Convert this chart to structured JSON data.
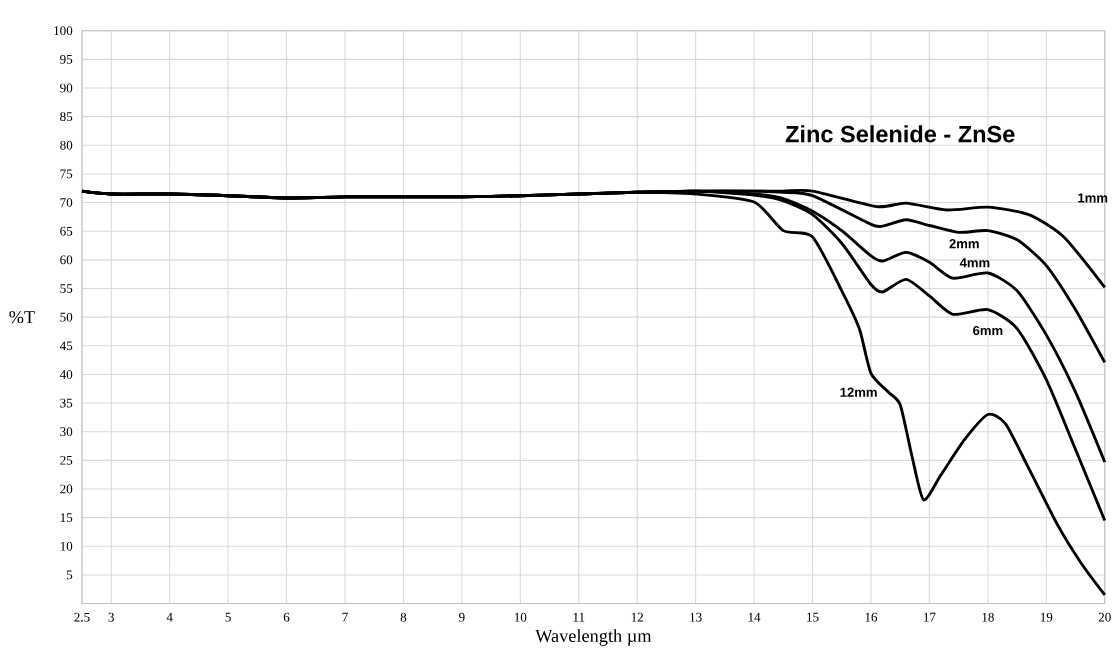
{
  "chart_data": {
    "type": "line",
    "title": "Zinc Selenide - ZnSe",
    "xlabel": "Wavelength µm",
    "ylabel": "%T",
    "xlim": [
      2.5,
      20
    ],
    "xticks": [
      2.5,
      3,
      4,
      5,
      6,
      7,
      8,
      9,
      10,
      11,
      12,
      13,
      14,
      15,
      16,
      17,
      18,
      19,
      20
    ],
    "ylim": [
      0,
      100
    ],
    "yticks": [
      5,
      10,
      15,
      20,
      25,
      30,
      35,
      40,
      45,
      50,
      55,
      60,
      65,
      70,
      75,
      80,
      85,
      90,
      95,
      100
    ],
    "grid": true,
    "marker": "none",
    "line_style": "solid",
    "series": [
      {
        "name": "1mm",
        "color": "#000000",
        "x": [
          2.5,
          3,
          4,
          5,
          6,
          7,
          8,
          9,
          10,
          11,
          12,
          13,
          14,
          14.5,
          15,
          16.1,
          16.6,
          17.3,
          18,
          18.7,
          19.3,
          20
        ],
        "values": [
          72,
          71.5,
          71.5,
          71.2,
          70.8,
          71,
          71,
          71,
          71.2,
          71.5,
          71.8,
          72,
          72,
          72,
          72,
          69.3,
          69.9,
          68.7,
          69.2,
          67.9,
          64,
          55.2
        ]
      },
      {
        "name": "2mm",
        "color": "#000000",
        "x": [
          2.5,
          3,
          4,
          5,
          6,
          7,
          8,
          9,
          10,
          11,
          12,
          13,
          14,
          14.5,
          15,
          16,
          16.2,
          16.6,
          17,
          17.5,
          18,
          18.5,
          19,
          19.5,
          20
        ],
        "values": [
          72,
          71.5,
          71.5,
          71.2,
          70.8,
          71,
          71,
          71,
          71.2,
          71.5,
          71.8,
          72,
          72,
          71.8,
          71.2,
          66.2,
          65.9,
          67,
          66,
          64.8,
          65.1,
          63.5,
          59,
          51.3,
          42.1
        ]
      },
      {
        "name": "4mm",
        "color": "#000000",
        "x": [
          2.5,
          3,
          4,
          5,
          6,
          7,
          8,
          9,
          10,
          11,
          12,
          13,
          14,
          14.5,
          15,
          15.5,
          16,
          16.2,
          16.6,
          17,
          17.4,
          18,
          18.5,
          19,
          19.5,
          20
        ],
        "values": [
          72,
          71.5,
          71.5,
          71.2,
          70.8,
          71,
          71,
          71,
          71.2,
          71.5,
          71.8,
          72,
          71.5,
          70.7,
          68.5,
          65.1,
          60.7,
          59.8,
          61.3,
          59.6,
          56.8,
          57.7,
          54.6,
          46.9,
          36.9,
          24.7
        ]
      },
      {
        "name": "6mm",
        "color": "#000000",
        "x": [
          2.5,
          3,
          4,
          5,
          6,
          7,
          8,
          9,
          10,
          11,
          12,
          13,
          14,
          14.5,
          15,
          15.5,
          16,
          16.2,
          16.6,
          17,
          17.4,
          18,
          18.5,
          19,
          19.5,
          20
        ],
        "values": [
          72,
          71.5,
          71.5,
          71.2,
          70.8,
          71,
          71,
          71,
          71.2,
          71.5,
          71.8,
          72,
          71.3,
          70.3,
          67.9,
          62.9,
          55.7,
          54.4,
          56.6,
          53.7,
          50.5,
          51.3,
          48,
          39.1,
          26.9,
          14.5
        ]
      },
      {
        "name": "12mm",
        "color": "#000000",
        "x": [
          2.5,
          3,
          4,
          5,
          6,
          7,
          8,
          9,
          10,
          11,
          12,
          13,
          14,
          14.5,
          15,
          15.5,
          15.8,
          16,
          16.3,
          16.5,
          16.7,
          16.9,
          17.2,
          17.6,
          18,
          18.3,
          18.7,
          19.2,
          19.6,
          20
        ],
        "values": [
          72,
          71.5,
          71.5,
          71.2,
          70.8,
          71,
          71,
          71,
          71.2,
          71.5,
          71.8,
          71.5,
          70.1,
          65.1,
          64,
          54.6,
          48,
          40.2,
          36.9,
          34.7,
          25.8,
          18.1,
          22.5,
          28.6,
          33,
          31.4,
          23.6,
          13.6,
          7,
          1.5
        ]
      }
    ]
  }
}
